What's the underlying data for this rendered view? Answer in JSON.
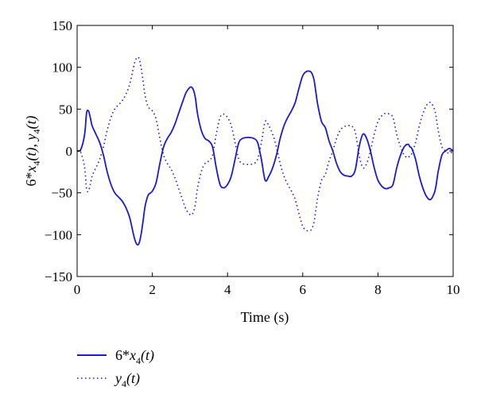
{
  "chart_data": {
    "type": "line",
    "xlabel": "Time (s)",
    "ylabel_parts": {
      "main1": "6*x",
      "sub1": "4",
      "main2": "(t), y",
      "sub2": "4",
      "main3": "(t)"
    },
    "xlim": [
      0,
      10
    ],
    "ylim": [
      -150,
      150
    ],
    "xticks": [
      0,
      2,
      4,
      6,
      8,
      10
    ],
    "yticks": [
      150,
      100,
      50,
      0,
      -50,
      -100,
      -150
    ],
    "grid": false,
    "legend_position": "bottom-left, below plot",
    "series": [
      {
        "name": "6*x4(t)",
        "legend": {
          "pre": "6*x",
          "sub": "4",
          "post": "(t)"
        },
        "style": "solid",
        "color": "#1a1ad6",
        "x": [
          0,
          0.1,
          0.2,
          0.25,
          0.3,
          0.35,
          0.4,
          0.5,
          0.6,
          0.7,
          0.8,
          0.9,
          1.0,
          1.1,
          1.2,
          1.3,
          1.4,
          1.5,
          1.55,
          1.6,
          1.65,
          1.7,
          1.75,
          1.8,
          1.85,
          1.9,
          2.0,
          2.1,
          2.2,
          2.3,
          2.4,
          2.5,
          2.6,
          2.7,
          2.8,
          2.9,
          3.0,
          3.05,
          3.1,
          3.15,
          3.2,
          3.3,
          3.4,
          3.5,
          3.6,
          3.7,
          3.8,
          3.9,
          4.0,
          4.1,
          4.2,
          4.3,
          4.4,
          4.5,
          4.6,
          4.7,
          4.8,
          4.9,
          5.0,
          5.1,
          5.2,
          5.3,
          5.4,
          5.5,
          5.6,
          5.7,
          5.8,
          5.9,
          6.0,
          6.1,
          6.2,
          6.25,
          6.3,
          6.35,
          6.4,
          6.5,
          6.6,
          6.7,
          6.8,
          6.9,
          7.0,
          7.1,
          7.2,
          7.3,
          7.4,
          7.5,
          7.6,
          7.7,
          7.8,
          7.9,
          8.0,
          8.1,
          8.2,
          8.3,
          8.4,
          8.5,
          8.6,
          8.7,
          8.8,
          8.85,
          8.9,
          9.0,
          9.1,
          9.2,
          9.3,
          9.4,
          9.5,
          9.55,
          9.6,
          9.7,
          9.8,
          9.9,
          10.0
        ],
        "y": [
          0,
          2,
          20,
          45,
          48,
          40,
          30,
          20,
          10,
          -5,
          -25,
          -40,
          -50,
          -55,
          -60,
          -68,
          -80,
          -100,
          -108,
          -112,
          -110,
          -100,
          -85,
          -68,
          -58,
          -52,
          -48,
          -38,
          -15,
          5,
          15,
          22,
          32,
          45,
          58,
          70,
          76,
          76,
          72,
          62,
          45,
          25,
          15,
          12,
          5,
          -20,
          -40,
          -44,
          -40,
          -30,
          -10,
          10,
          15,
          16,
          16,
          15,
          10,
          -10,
          -35,
          -30,
          -20,
          -5,
          15,
          30,
          40,
          48,
          58,
          75,
          90,
          95,
          95,
          92,
          85,
          70,
          55,
          35,
          28,
          12,
          0,
          -15,
          -25,
          -29,
          -30,
          -30,
          -22,
          5,
          20,
          15,
          0,
          -20,
          -35,
          -42,
          -45,
          -44,
          -40,
          -20,
          -5,
          5,
          8,
          5,
          3,
          -10,
          -30,
          -45,
          -55,
          -58,
          -50,
          -40,
          -25,
          -5,
          0,
          3,
          0
        ]
      },
      {
        "name": "y4(t)",
        "legend": {
          "pre": "y",
          "sub": "4",
          "post": "(t)"
        },
        "style": "dotted",
        "color": "#1a1ad6",
        "x": [
          0,
          0.1,
          0.2,
          0.25,
          0.3,
          0.35,
          0.4,
          0.5,
          0.6,
          0.7,
          0.8,
          0.9,
          1.0,
          1.1,
          1.2,
          1.3,
          1.4,
          1.5,
          1.55,
          1.6,
          1.65,
          1.7,
          1.75,
          1.8,
          1.85,
          1.9,
          2.0,
          2.1,
          2.2,
          2.3,
          2.4,
          2.5,
          2.6,
          2.7,
          2.8,
          2.9,
          3.0,
          3.05,
          3.1,
          3.15,
          3.2,
          3.3,
          3.4,
          3.5,
          3.6,
          3.7,
          3.8,
          3.9,
          4.0,
          4.1,
          4.2,
          4.3,
          4.4,
          4.5,
          4.6,
          4.7,
          4.8,
          4.9,
          5.0,
          5.1,
          5.2,
          5.3,
          5.4,
          5.5,
          5.6,
          5.7,
          5.8,
          5.9,
          6.0,
          6.1,
          6.2,
          6.25,
          6.3,
          6.35,
          6.4,
          6.5,
          6.6,
          6.7,
          6.8,
          6.9,
          7.0,
          7.1,
          7.2,
          7.3,
          7.4,
          7.5,
          7.6,
          7.7,
          7.8,
          7.9,
          8.0,
          8.1,
          8.2,
          8.3,
          8.4,
          8.5,
          8.6,
          8.7,
          8.8,
          8.85,
          8.9,
          9.0,
          9.1,
          9.2,
          9.3,
          9.4,
          9.5,
          9.55,
          9.6,
          9.7,
          9.8,
          9.9,
          10.0
        ],
        "y": [
          0,
          -2,
          -20,
          -45,
          -48,
          -40,
          -30,
          -20,
          -10,
          5,
          25,
          40,
          50,
          55,
          60,
          68,
          80,
          100,
          108,
          112,
          110,
          100,
          85,
          68,
          58,
          52,
          48,
          38,
          15,
          -5,
          -15,
          -22,
          -32,
          -45,
          -58,
          -70,
          -76,
          -76,
          -72,
          -62,
          -45,
          -25,
          -15,
          -12,
          -5,
          20,
          40,
          44,
          40,
          30,
          10,
          -10,
          -15,
          -16,
          -16,
          -15,
          -10,
          10,
          35,
          30,
          20,
          5,
          -15,
          -30,
          -40,
          -48,
          -58,
          -75,
          -90,
          -95,
          -95,
          -92,
          -85,
          -70,
          -55,
          -35,
          -28,
          -12,
          0,
          15,
          25,
          29,
          30,
          30,
          22,
          -5,
          -20,
          -15,
          0,
          20,
          35,
          42,
          45,
          44,
          40,
          20,
          5,
          -5,
          -8,
          -5,
          -3,
          10,
          30,
          45,
          55,
          58,
          50,
          40,
          25,
          5,
          0,
          -3,
          0
        ]
      }
    ]
  }
}
